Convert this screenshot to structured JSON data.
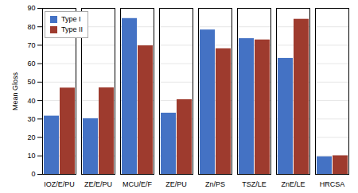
{
  "chart_data": {
    "type": "bar",
    "categories": [
      "IOZ/E/PU",
      "ZE/E/PU",
      "MCU/E/F",
      "ZE/PU",
      "Zn/PS",
      "TSZ/LE",
      "ZnE/LE",
      "HRCSA"
    ],
    "series": [
      {
        "name": "Type I",
        "color": "#4472C4",
        "values": [
          31.6,
          30.2,
          84.5,
          33.2,
          78.3,
          73.6,
          62.9,
          9.5
        ]
      },
      {
        "name": "Type II",
        "color": "#9E3B2E",
        "values": [
          46.8,
          46.9,
          69.7,
          40.5,
          68.1,
          72.9,
          84.1,
          10.1
        ]
      }
    ],
    "ylabel": "Mean Gloss",
    "ylim": [
      0,
      90
    ],
    "yticks": [
      0,
      10,
      20,
      30,
      40,
      50,
      60,
      70,
      80,
      90
    ],
    "grid": true,
    "legend": "upper left"
  }
}
